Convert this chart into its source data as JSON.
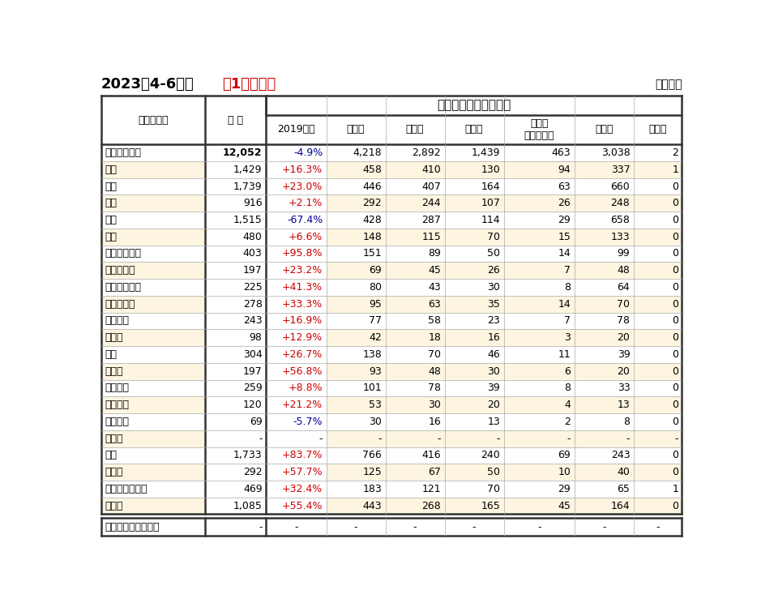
{
  "title_left": "2023年4-6月期",
  "title_middle": "（1次速報）",
  "title_right": "（億円）",
  "main_header": "訪日外国人旅行消費額",
  "col_headers": [
    "国籍・地域",
    "総 額",
    "2019年比",
    "宿泊費",
    "飲食費",
    "交通費",
    "娯楽等\nサービス費",
    "買物代",
    "その他"
  ],
  "rows": [
    [
      "全国籍・地域",
      "12,052",
      "-4.9%",
      "4,218",
      "2,892",
      "1,439",
      "463",
      "3,038",
      "2"
    ],
    [
      "韓国",
      "1,429",
      "+16.3%",
      "458",
      "410",
      "130",
      "94",
      "337",
      "1"
    ],
    [
      "台湾",
      "1,739",
      "+23.0%",
      "446",
      "407",
      "164",
      "63",
      "660",
      "0"
    ],
    [
      "香港",
      "916",
      "+2.1%",
      "292",
      "244",
      "107",
      "26",
      "248",
      "0"
    ],
    [
      "中国",
      "1,515",
      "-67.4%",
      "428",
      "287",
      "114",
      "29",
      "658",
      "0"
    ],
    [
      "タイ",
      "480",
      "+6.6%",
      "148",
      "115",
      "70",
      "15",
      "133",
      "0"
    ],
    [
      "シンガポール",
      "403",
      "+95.8%",
      "151",
      "89",
      "50",
      "14",
      "99",
      "0"
    ],
    [
      "マレーシア",
      "197",
      "+23.2%",
      "69",
      "45",
      "26",
      "7",
      "48",
      "0"
    ],
    [
      "インドネシア",
      "225",
      "+41.3%",
      "80",
      "43",
      "30",
      "8",
      "64",
      "0"
    ],
    [
      "フィリピン",
      "278",
      "+33.3%",
      "95",
      "63",
      "35",
      "14",
      "70",
      "0"
    ],
    [
      "ベトナム",
      "243",
      "+16.9%",
      "77",
      "58",
      "23",
      "7",
      "78",
      "0"
    ],
    [
      "インド",
      "98",
      "+12.9%",
      "42",
      "18",
      "16",
      "3",
      "20",
      "0"
    ],
    [
      "英国",
      "304",
      "+26.7%",
      "138",
      "70",
      "46",
      "11",
      "39",
      "0"
    ],
    [
      "ドイツ",
      "197",
      "+56.8%",
      "93",
      "48",
      "30",
      "6",
      "20",
      "0"
    ],
    [
      "フランス",
      "259",
      "+8.8%",
      "101",
      "78",
      "39",
      "8",
      "33",
      "0"
    ],
    [
      "イタリア",
      "120",
      "+21.2%",
      "53",
      "30",
      "20",
      "4",
      "13",
      "0"
    ],
    [
      "スペイン",
      "69",
      "-5.7%",
      "30",
      "16",
      "13",
      "2",
      "8",
      "0"
    ],
    [
      "ロシア",
      "-",
      "-",
      "-",
      "-",
      "-",
      "-",
      "-",
      "-"
    ],
    [
      "米国",
      "1,733",
      "+83.7%",
      "766",
      "416",
      "240",
      "69",
      "243",
      "0"
    ],
    [
      "カナダ",
      "292",
      "+57.7%",
      "125",
      "67",
      "50",
      "10",
      "40",
      "0"
    ],
    [
      "オーストラリア",
      "469",
      "+32.4%",
      "183",
      "121",
      "70",
      "29",
      "65",
      "1"
    ],
    [
      "その他",
      "1,085",
      "+55.4%",
      "443",
      "268",
      "165",
      "45",
      "164",
      "0"
    ]
  ],
  "cruise_row": [
    "クルーズ客（再掲）",
    "-",
    "-",
    "-",
    "-",
    "-",
    "-",
    "-",
    "-"
  ],
  "col_widths_raw": [
    1.55,
    0.9,
    0.9,
    0.88,
    0.88,
    0.88,
    1.05,
    0.88,
    0.72
  ],
  "bg_yellow": "#fdf5e0",
  "bg_white": "#ffffff",
  "border_dark": "#333333",
  "border_light": "#aaaaaa",
  "text_black": "#000000",
  "text_red_pos": "#cc0000",
  "text_blue_neg": "#000099",
  "title_font_size": 13,
  "header_font_size": 9,
  "data_font_size": 9,
  "main_header_font_size": 11
}
